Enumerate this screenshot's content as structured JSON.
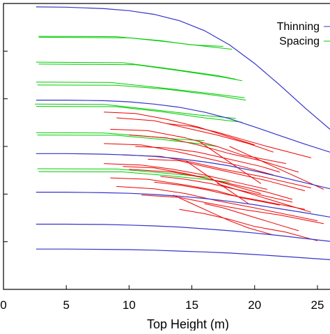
{
  "chart_data": {
    "type": "line",
    "title": "",
    "xlabel": "Top Height (m)",
    "ylabel": "",
    "xlim": [
      0,
      26
    ],
    "ylim": [
      0,
      1
    ],
    "xticks": [
      0,
      5,
      10,
      15,
      20,
      25
    ],
    "grid": false,
    "legend": {
      "placement": "top-right",
      "entries": [
        {
          "label": "Thinning",
          "color": "#3333cc"
        },
        {
          "label": "Spacing",
          "color": "#00cc00"
        }
      ]
    },
    "colors": {
      "curves": "#3333cc",
      "spacing": "#00cc00",
      "thinning": "#ee0000"
    },
    "curves": [
      {
        "x": [
          2.6,
          5,
          8,
          10,
          12,
          14,
          16,
          18,
          20,
          22,
          24,
          26
        ],
        "y": [
          0.988,
          0.987,
          0.982,
          0.975,
          0.962,
          0.94,
          0.905,
          0.855,
          0.79,
          0.715,
          0.635,
          0.56
        ]
      },
      {
        "x": [
          2.6,
          5,
          8,
          10,
          12,
          14,
          16,
          18,
          20,
          22,
          24,
          26
        ],
        "y": [
          0.662,
          0.662,
          0.66,
          0.656,
          0.648,
          0.637,
          0.62,
          0.597,
          0.568,
          0.538,
          0.508,
          0.48
        ]
      },
      {
        "x": [
          2.6,
          5,
          8,
          10,
          12,
          14,
          16,
          18,
          20,
          22,
          24,
          26
        ],
        "y": [
          0.475,
          0.475,
          0.473,
          0.47,
          0.465,
          0.457,
          0.446,
          0.432,
          0.414,
          0.394,
          0.373,
          0.352
        ]
      },
      {
        "x": [
          2.6,
          5,
          8,
          10,
          12,
          14,
          16,
          18,
          20,
          22,
          24,
          26
        ],
        "y": [
          0.34,
          0.34,
          0.338,
          0.336,
          0.332,
          0.326,
          0.318,
          0.308,
          0.296,
          0.282,
          0.268,
          0.253
        ]
      },
      {
        "x": [
          2.6,
          5,
          8,
          10,
          12,
          14,
          16,
          18,
          20,
          22,
          24,
          26
        ],
        "y": [
          0.228,
          0.228,
          0.227,
          0.225,
          0.222,
          0.218,
          0.212,
          0.205,
          0.197,
          0.188,
          0.178,
          0.168
        ]
      },
      {
        "x": [
          2.6,
          5,
          8,
          10,
          12,
          14,
          16,
          18,
          20,
          22,
          24,
          26
        ],
        "y": [
          0.141,
          0.141,
          0.14,
          0.139,
          0.137,
          0.134,
          0.131,
          0.127,
          0.122,
          0.116,
          0.11,
          0.104
        ]
      }
    ],
    "spacing": [
      {
        "x": [
          2.8,
          9.0,
          12.5,
          15.0,
          17.5
        ],
        "y": [
          0.885,
          0.884,
          0.87,
          0.855,
          0.85
        ]
      },
      {
        "x": [
          2.8,
          10.0,
          13.0,
          16.5,
          18.2
        ],
        "y": [
          0.882,
          0.88,
          0.866,
          0.848,
          0.84
        ]
      },
      {
        "x": [
          2.6,
          9.5,
          13.5,
          17.0,
          18.5
        ],
        "y": [
          0.795,
          0.793,
          0.77,
          0.748,
          0.735
        ]
      },
      {
        "x": [
          2.8,
          10.5,
          14.0,
          17.5,
          19.0
        ],
        "y": [
          0.788,
          0.786,
          0.765,
          0.742,
          0.73
        ]
      },
      {
        "x": [
          2.6,
          8.5,
          12.5,
          16.5,
          19.2
        ],
        "y": [
          0.725,
          0.724,
          0.705,
          0.685,
          0.67
        ]
      },
      {
        "x": [
          2.7,
          9.0,
          13.0,
          17.0,
          19.3
        ],
        "y": [
          0.715,
          0.714,
          0.7,
          0.678,
          0.662
        ]
      },
      {
        "x": [
          2.5,
          8.0,
          12.0,
          15.5,
          18.5
        ],
        "y": [
          0.648,
          0.647,
          0.628,
          0.61,
          0.598
        ]
      },
      {
        "x": [
          2.6,
          9.0,
          12.5,
          16.0,
          19.0
        ],
        "y": [
          0.64,
          0.639,
          0.622,
          0.6,
          0.585
        ]
      },
      {
        "x": [
          2.6,
          8.0,
          11.0,
          14.0,
          16.0
        ],
        "y": [
          0.548,
          0.547,
          0.537,
          0.525,
          0.52
        ]
      },
      {
        "x": [
          2.7,
          9.0,
          12.5,
          15.5,
          17.0
        ],
        "y": [
          0.54,
          0.539,
          0.525,
          0.51,
          0.5
        ]
      },
      {
        "x": [
          2.7,
          9.0,
          12.0,
          14.5,
          16.5
        ],
        "y": [
          0.422,
          0.421,
          0.41,
          0.4,
          0.392
        ]
      },
      {
        "x": [
          2.8,
          9.5,
          13.0,
          16.0,
          18.0
        ],
        "y": [
          0.412,
          0.411,
          0.398,
          0.385,
          0.375
        ]
      }
    ],
    "thinning": [
      {
        "x": [
          8.0,
          10.5,
          13.0,
          15.5,
          17.5,
          20.0
        ],
        "y": [
          0.62,
          0.615,
          0.595,
          0.568,
          0.54,
          0.505
        ]
      },
      {
        "x": [
          9.0,
          12.0,
          14.5,
          17.0,
          19.5,
          21.5
        ],
        "y": [
          0.6,
          0.59,
          0.565,
          0.54,
          0.51,
          0.48
        ]
      },
      {
        "x": [
          8.5,
          11.5,
          14.5,
          17.0,
          19.0,
          22.5
        ],
        "y": [
          0.56,
          0.555,
          0.53,
          0.5,
          0.47,
          0.44
        ]
      },
      {
        "x": [
          10.0,
          13.0,
          15.5,
          18.0,
          20.5,
          23.5
        ],
        "y": [
          0.54,
          0.53,
          0.505,
          0.475,
          0.45,
          0.41
        ]
      },
      {
        "x": [
          8.0,
          11.0,
          14.0,
          16.5,
          19.0,
          21.5
        ],
        "y": [
          0.51,
          0.505,
          0.48,
          0.455,
          0.43,
          0.4
        ]
      },
      {
        "x": [
          9.5,
          12.5,
          15.0,
          17.5,
          20.5,
          24.5
        ],
        "y": [
          0.47,
          0.465,
          0.445,
          0.42,
          0.395,
          0.355
        ]
      },
      {
        "x": [
          8.0,
          11.0,
          13.5,
          16.0,
          18.5,
          21.0
        ],
        "y": [
          0.44,
          0.435,
          0.42,
          0.4,
          0.375,
          0.35
        ]
      },
      {
        "x": [
          10.0,
          13.5,
          16.0,
          18.5,
          21.0,
          23.0
        ],
        "y": [
          0.42,
          0.41,
          0.39,
          0.365,
          0.34,
          0.315
        ]
      },
      {
        "x": [
          8.5,
          11.5,
          14.5,
          17.0,
          19.0,
          22.0
        ],
        "y": [
          0.39,
          0.385,
          0.365,
          0.345,
          0.32,
          0.295
        ]
      },
      {
        "x": [
          12.0,
          14.0,
          16.0,
          18.0,
          20.5,
          24.0
        ],
        "y": [
          0.375,
          0.365,
          0.35,
          0.33,
          0.31,
          0.28
        ]
      },
      {
        "x": [
          9.0,
          12.0,
          14.5,
          17.0,
          20.0,
          25.0
        ],
        "y": [
          0.36,
          0.352,
          0.335,
          0.31,
          0.285,
          0.24
        ]
      },
      {
        "x": [
          11.0,
          14.0,
          16.5,
          19.0,
          22.0,
          25.5
        ],
        "y": [
          0.33,
          0.322,
          0.3,
          0.28,
          0.26,
          0.23
        ]
      },
      {
        "x": [
          13.5,
          15.0,
          16.5,
          18.0,
          19.5,
          21.5
        ],
        "y": [
          0.33,
          0.3,
          0.27,
          0.24,
          0.215,
          0.19
        ]
      },
      {
        "x": [
          14.0,
          16.0,
          18.0,
          20.0,
          22.5,
          25.0
        ],
        "y": [
          0.28,
          0.265,
          0.245,
          0.22,
          0.2,
          0.17
        ]
      },
      {
        "x": [
          15.5,
          16.5,
          17.5,
          18.5,
          19.5,
          20.5
        ],
        "y": [
          0.52,
          0.49,
          0.46,
          0.43,
          0.4,
          0.37
        ]
      },
      {
        "x": [
          10.5,
          13.0,
          15.5,
          18.0,
          20.5,
          22.0
        ],
        "y": [
          0.5,
          0.495,
          0.48,
          0.455,
          0.43,
          0.41
        ]
      },
      {
        "x": [
          11.5,
          14.0,
          16.0,
          18.5,
          21.0,
          24.0
        ],
        "y": [
          0.455,
          0.45,
          0.43,
          0.405,
          0.38,
          0.345
        ]
      },
      {
        "x": [
          12.5,
          14.5,
          16.5,
          18.5,
          20.5,
          23.0
        ],
        "y": [
          0.395,
          0.385,
          0.37,
          0.35,
          0.33,
          0.305
        ]
      },
      {
        "x": [
          13.0,
          15.0,
          17.0,
          19.0,
          21.0,
          24.5
        ],
        "y": [
          0.58,
          0.57,
          0.55,
          0.525,
          0.5,
          0.46
        ]
      },
      {
        "x": [
          9.5,
          12.0,
          14.5,
          16.5,
          18.5,
          20.5
        ],
        "y": [
          0.43,
          0.425,
          0.405,
          0.385,
          0.36,
          0.335
        ]
      },
      {
        "x": [
          16.0,
          17.5,
          19.0,
          20.5,
          22.0,
          23.5
        ],
        "y": [
          0.3,
          0.285,
          0.265,
          0.245,
          0.225,
          0.205
        ]
      },
      {
        "x": [
          17.0,
          18.5,
          20.0,
          21.5,
          23.0,
          24.5
        ],
        "y": [
          0.37,
          0.35,
          0.33,
          0.31,
          0.29,
          0.27
        ]
      },
      {
        "x": [
          14.5,
          15.5,
          16.5,
          17.5,
          18.5,
          19.5
        ],
        "y": [
          0.45,
          0.42,
          0.39,
          0.36,
          0.33,
          0.3
        ]
      },
      {
        "x": [
          18.0,
          19.5,
          21.0,
          22.5,
          24.0,
          25.5
        ],
        "y": [
          0.5,
          0.47,
          0.44,
          0.41,
          0.38,
          0.35
        ]
      }
    ]
  }
}
